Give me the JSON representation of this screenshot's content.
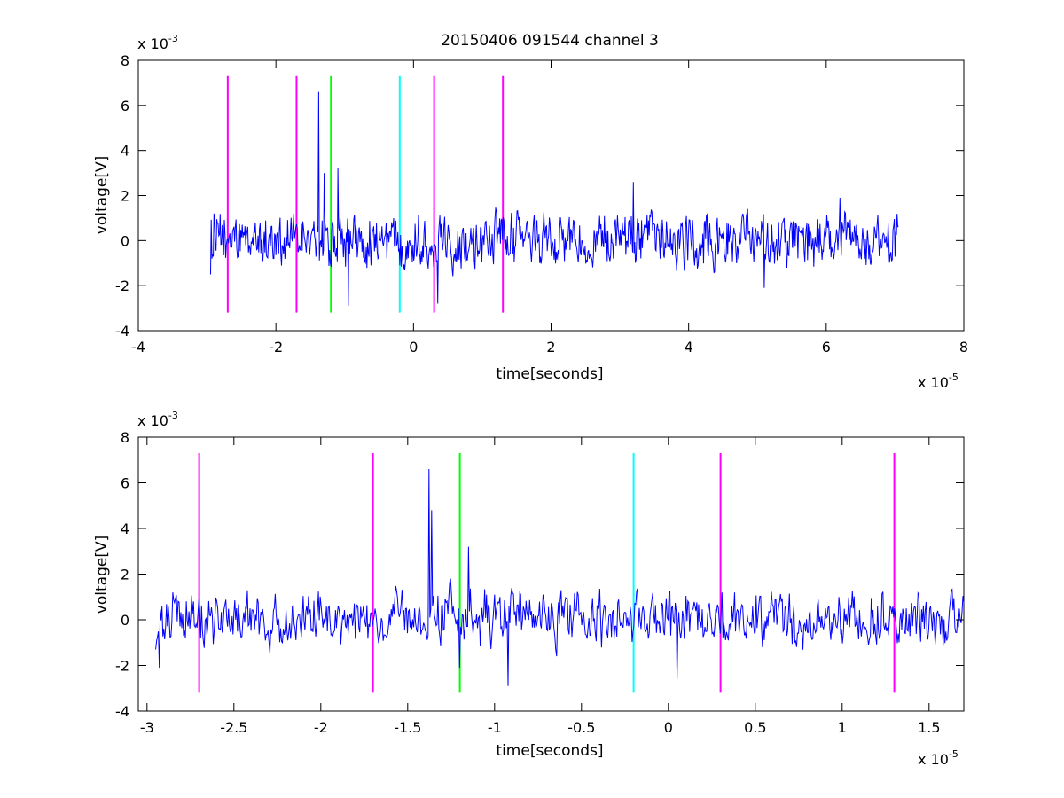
{
  "figure": {
    "title": "20150406 091544 channel 3"
  },
  "colors": {
    "signal": "#0000ff",
    "marker_magenta": "#ff00ff",
    "marker_green": "#00ff00",
    "marker_cyan": "#00ffff",
    "axes": "#000000"
  },
  "chart_data": [
    {
      "type": "line",
      "title": "20150406 091544 channel 3",
      "xlabel": "time[seconds]",
      "ylabel": "voltage[V]",
      "x_multiplier_label": "x 10",
      "x_multiplier_exp": "-5",
      "y_multiplier_label": "x 10",
      "y_multiplier_exp": "-3",
      "xlim": [
        -4,
        8
      ],
      "ylim": [
        -4,
        8
      ],
      "xticks": [
        "-4",
        "-2",
        "0",
        "2",
        "4",
        "6",
        "8"
      ],
      "yticks": [
        "-4",
        "-2",
        "0",
        "2",
        "4",
        "6",
        "8"
      ],
      "x_units_scale": "1e-5 s",
      "y_units_scale": "1e-3 V",
      "series": [
        {
          "kind": "noise-trace",
          "x_start": -2.95,
          "x_end": 7.05,
          "baseline": 0,
          "typical_range": [
            -2.5,
            2.5
          ],
          "key_points": [
            [
              -2.95,
              -1.5
            ],
            [
              -2.9,
              1.2
            ],
            [
              -1.38,
              6.6
            ],
            [
              -1.3,
              3.0
            ],
            [
              -1.1,
              3.2
            ],
            [
              -0.95,
              -2.9
            ],
            [
              0.35,
              -2.8
            ],
            [
              3.2,
              2.6
            ],
            [
              5.1,
              -2.1
            ],
            [
              6.2,
              1.9
            ]
          ]
        }
      ],
      "markers": [
        {
          "x": -2.7,
          "color": "magenta"
        },
        {
          "x": -1.7,
          "color": "magenta"
        },
        {
          "x": -1.2,
          "color": "green"
        },
        {
          "x": -0.2,
          "color": "cyan"
        },
        {
          "x": 0.3,
          "color": "magenta"
        },
        {
          "x": 1.3,
          "color": "magenta"
        }
      ],
      "marker_y_range": [
        -3.2,
        7.3
      ],
      "grid": false
    },
    {
      "type": "line",
      "title": "",
      "xlabel": "time[seconds]",
      "ylabel": "voltage[V]",
      "x_multiplier_label": "x 10",
      "x_multiplier_exp": "-5",
      "y_multiplier_label": "x 10",
      "y_multiplier_exp": "-3",
      "xlim": [
        -3.05,
        1.7
      ],
      "ylim": [
        -4,
        8
      ],
      "xticks": [
        "-3",
        "-2.5",
        "-2",
        "-1.5",
        "-1",
        "-0.5",
        "0",
        "0.5",
        "1",
        "1.5"
      ],
      "xtick_values": [
        -3,
        -2.5,
        -2,
        -1.5,
        -1,
        -0.5,
        0,
        0.5,
        1,
        1.5
      ],
      "yticks": [
        "-4",
        "-2",
        "0",
        "2",
        "4",
        "6",
        "8"
      ],
      "series": [
        {
          "kind": "noise-trace",
          "x_start": -2.95,
          "x_end": 1.7,
          "baseline": 0,
          "typical_range": [
            -2.0,
            2.2
          ],
          "key_points": [
            [
              -2.95,
              -1.3
            ],
            [
              -2.93,
              -2.1
            ],
            [
              -2.85,
              1.2
            ],
            [
              -2.7,
              0.9
            ],
            [
              -1.38,
              6.6
            ],
            [
              -1.36,
              4.8
            ],
            [
              -1.2,
              -2.1
            ],
            [
              -1.15,
              3.2
            ],
            [
              -0.92,
              -2.9
            ],
            [
              0.05,
              -2.6
            ],
            [
              0.3,
              -0.6
            ],
            [
              1.3,
              0.5
            ]
          ]
        }
      ],
      "markers": [
        {
          "x": -2.7,
          "color": "magenta"
        },
        {
          "x": -1.7,
          "color": "magenta"
        },
        {
          "x": -1.2,
          "color": "green"
        },
        {
          "x": -0.2,
          "color": "cyan"
        },
        {
          "x": 0.3,
          "color": "magenta"
        },
        {
          "x": 1.3,
          "color": "magenta"
        }
      ],
      "marker_y_range": [
        -3.2,
        7.3
      ],
      "grid": false
    }
  ]
}
